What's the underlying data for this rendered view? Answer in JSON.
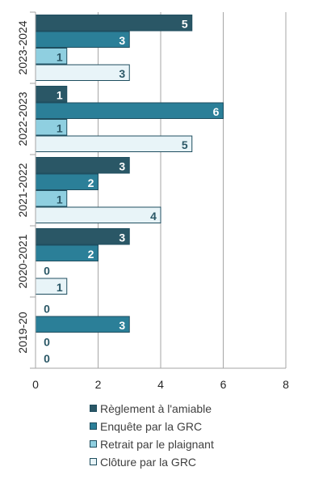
{
  "chart_data": {
    "type": "bar",
    "orientation": "horizontal",
    "categories": [
      "2023-2024",
      "2022-2023",
      "2021-2022",
      "2020-2021",
      "2019-20"
    ],
    "series": [
      {
        "name": "Règlement à l'amiable",
        "values": [
          5,
          1,
          3,
          3,
          0
        ],
        "color": "#2a5766"
      },
      {
        "name": "Enquête par la GRC",
        "values": [
          3,
          6,
          2,
          2,
          3
        ],
        "color": "#2b7f98"
      },
      {
        "name": "Retrait par le plaignant",
        "values": [
          1,
          1,
          1,
          0,
          0
        ],
        "color": "#8fcfe0"
      },
      {
        "name": "Clôture par la GRC",
        "values": [
          3,
          5,
          4,
          1,
          0
        ],
        "color": "#e8f4f8"
      }
    ],
    "xlim": [
      0,
      8
    ],
    "x_ticks": [
      "0",
      "2",
      "4",
      "6",
      "8"
    ],
    "grid": true,
    "data_labels": true,
    "legend_position": "bottom",
    "title": "",
    "xlabel": "",
    "ylabel": ""
  }
}
